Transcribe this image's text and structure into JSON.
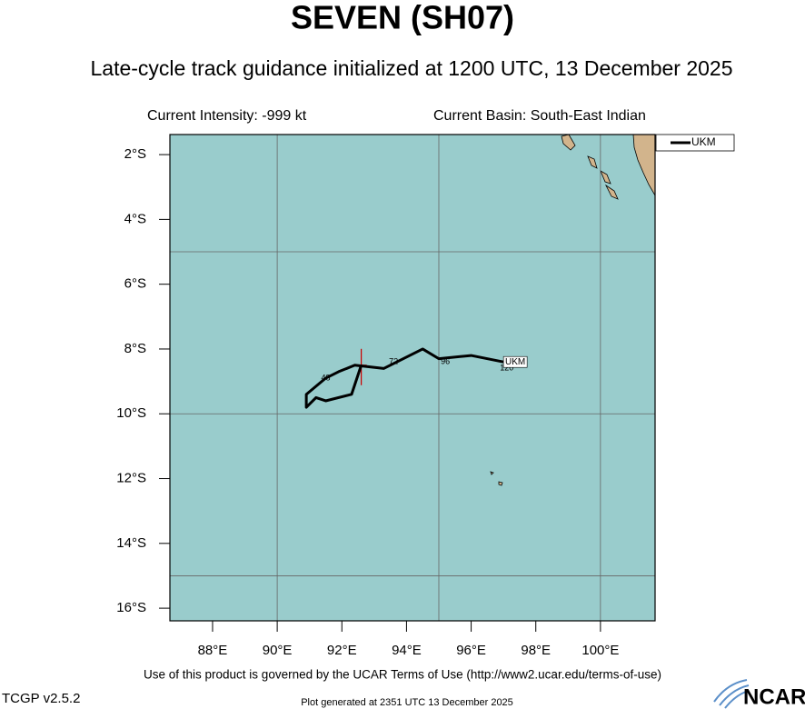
{
  "map": {
    "title": "SEVEN (SH07)",
    "subtitle": "Late-cycle track guidance initialized at 1200 UTC, 13 December 2025",
    "info_left": "Current Intensity: -999 kt",
    "info_right": "Current Basin: South-East Indian",
    "lonlim": [
      86.68,
      101.69
    ],
    "latlim": [
      -16.39,
      -1.38
    ],
    "lon_ticks": [
      {
        "value": 88,
        "label": "88°E"
      },
      {
        "value": 90,
        "label": "90°E"
      },
      {
        "value": 92,
        "label": "92°E"
      },
      {
        "value": 94,
        "label": "94°E"
      },
      {
        "value": 96,
        "label": "96°E"
      },
      {
        "value": 98,
        "label": "98°E"
      },
      {
        "value": 100,
        "label": "100°E"
      }
    ],
    "lat_ticks": [
      {
        "value": -2,
        "label": "2°S"
      },
      {
        "value": -4,
        "label": "4°S"
      },
      {
        "value": -6,
        "label": "6°S"
      },
      {
        "value": -8,
        "label": "8°S"
      },
      {
        "value": -10,
        "label": "10°S"
      },
      {
        "value": -12,
        "label": "12°S"
      },
      {
        "value": -14,
        "label": "14°S"
      },
      {
        "value": -16,
        "label": "16°S"
      }
    ],
    "grid_lons": [
      90,
      95,
      100
    ],
    "grid_lats": [
      -5,
      -10,
      -15
    ],
    "ocean_color": "#99cccc",
    "current_position": {
      "lon": 92.6,
      "lat": -8.5,
      "color": "#cc0000"
    },
    "tracks": [
      {
        "name": "UKM",
        "color": "#000000",
        "lon": [
          92.6,
          92.3,
          91.5,
          91.2,
          90.9,
          90.9,
          91.5,
          91.9,
          92.4,
          93.3,
          94.5,
          95.0,
          96.0,
          97.0
        ],
        "lat": [
          -8.5,
          -9.4,
          -9.6,
          -9.5,
          -9.8,
          -9.4,
          -8.9,
          -8.7,
          -8.5,
          -8.6,
          -8.0,
          -8.3,
          -8.2,
          -8.4
        ],
        "hour_labels": [
          {
            "label": "48",
            "lon": 91.5,
            "lat": -8.9
          },
          {
            "label": "72",
            "lon": 93.6,
            "lat": -8.4
          },
          {
            "label": "96",
            "lon": 95.2,
            "lat": -8.4
          },
          {
            "label": "120",
            "lon": 97.1,
            "lat": -8.6
          }
        ]
      }
    ]
  },
  "footer": {
    "terms": "Use of this product is governed by the UCAR Terms of Use (http://www2.ucar.edu/terms-of-use)",
    "version": "TCGP v2.5.2",
    "generated": "Plot generated at 2351 UTC   13 December 2025",
    "logo": "NCAR"
  }
}
